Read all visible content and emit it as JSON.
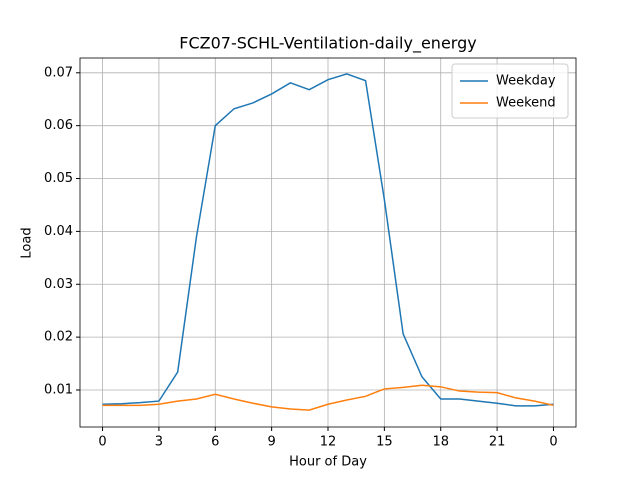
{
  "chart_data": {
    "type": "line",
    "title": "FCZ07-SCHL-Ventilation-daily_energy",
    "xlabel": "Hour of Day",
    "ylabel": "Load",
    "x": [
      0,
      1,
      2,
      3,
      4,
      5,
      6,
      7,
      8,
      9,
      10,
      11,
      12,
      13,
      14,
      15,
      16,
      17,
      18,
      19,
      20,
      21,
      22,
      23,
      24
    ],
    "series": [
      {
        "name": "Weekday",
        "color": "#1f77b4",
        "values": [
          0.0073,
          0.0074,
          0.0076,
          0.0079,
          0.0134,
          0.039,
          0.06,
          0.0632,
          0.0643,
          0.066,
          0.0681,
          0.0668,
          0.0687,
          0.0698,
          0.0685,
          0.046,
          0.0206,
          0.0125,
          0.0083,
          0.0083,
          0.0079,
          0.0075,
          0.007,
          0.007,
          0.0073
        ]
      },
      {
        "name": "Weekend",
        "color": "#ff7f0e",
        "values": [
          0.0071,
          0.0071,
          0.0071,
          0.0073,
          0.0079,
          0.0083,
          0.0092,
          0.0083,
          0.0075,
          0.0068,
          0.0064,
          0.0062,
          0.0073,
          0.0081,
          0.0088,
          0.0102,
          0.0105,
          0.0109,
          0.0106,
          0.0098,
          0.0096,
          0.0095,
          0.0085,
          0.0079,
          0.0071
        ]
      }
    ],
    "xlim": [
      -1.2,
      25.2
    ],
    "xticks": [
      0,
      3,
      6,
      9,
      12,
      15,
      18,
      21,
      {
        "value": 24,
        "label": "0"
      }
    ],
    "ylim": [
      0.003,
      0.0728
    ],
    "yticks": [
      0.01,
      0.02,
      0.03,
      0.04,
      0.05,
      0.06,
      0.07
    ],
    "grid": true,
    "legend": "upper-right"
  }
}
